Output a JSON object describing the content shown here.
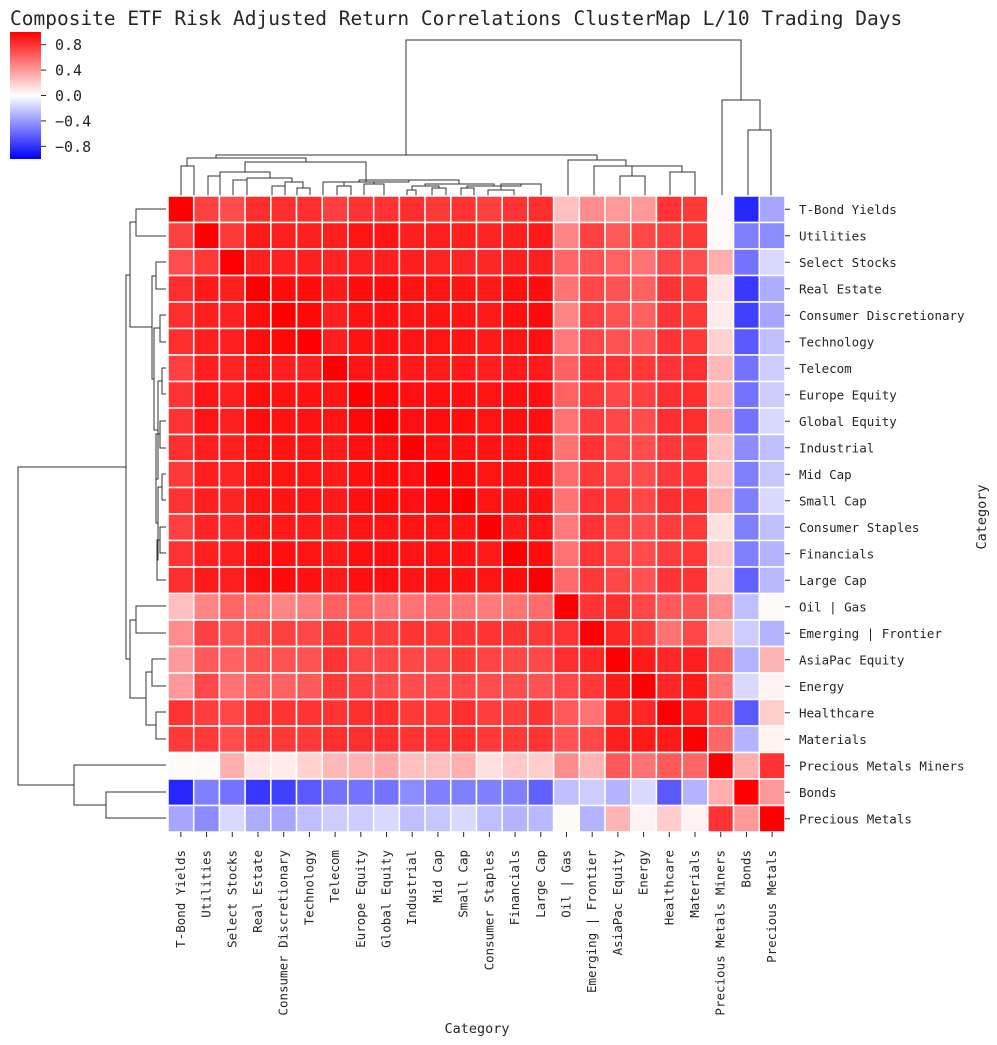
{
  "chart_data": {
    "type": "heatmap",
    "title": "Composite ETF Risk Adjusted Return Correlations ClusterMap L/10 Trading Days",
    "xlabel": "Category",
    "ylabel": "Category",
    "vmin": -1.0,
    "vmax": 1.0,
    "colormap": "bwr",
    "colorbar_ticks": [
      0.8,
      0.4,
      0.0,
      -0.4,
      -0.8
    ],
    "colorbar_tick_labels": [
      "0.8",
      "0.4",
      "0.0",
      "−0.4",
      "−0.8"
    ],
    "categories": [
      "T-Bond Yields",
      "Utilities",
      "Select Stocks",
      "Real Estate",
      "Consumer Discretionary",
      "Technology",
      "Telecom",
      "Europe Equity",
      "Global Equity",
      "Industrial",
      "Mid Cap",
      "Small Cap",
      "Consumer Staples",
      "Financials",
      "Large Cap",
      "Oil | Gas",
      "Emerging | Frontier",
      "AsiaPac Equity",
      "Energy",
      "Healthcare",
      "Materials",
      "Precious Metals Miners",
      "Bonds",
      "Precious Metals"
    ],
    "matrix": [
      [
        1.0,
        0.75,
        0.7,
        0.82,
        0.82,
        0.82,
        0.75,
        0.8,
        0.8,
        0.82,
        0.78,
        0.8,
        0.75,
        0.8,
        0.82,
        0.25,
        0.45,
        0.4,
        0.4,
        0.8,
        0.78,
        0.02,
        -0.85,
        -0.35
      ],
      [
        0.75,
        1.0,
        0.78,
        0.9,
        0.88,
        0.88,
        0.88,
        0.92,
        0.92,
        0.88,
        0.88,
        0.88,
        0.86,
        0.88,
        0.9,
        0.48,
        0.75,
        0.65,
        0.72,
        0.76,
        0.78,
        0.02,
        -0.5,
        -0.45
      ],
      [
        0.7,
        0.78,
        1.0,
        0.88,
        0.87,
        0.88,
        0.86,
        0.88,
        0.88,
        0.88,
        0.86,
        0.86,
        0.85,
        0.88,
        0.88,
        0.6,
        0.68,
        0.62,
        0.55,
        0.72,
        0.7,
        0.32,
        -0.55,
        -0.15
      ],
      [
        0.82,
        0.9,
        0.88,
        1.0,
        0.95,
        0.95,
        0.9,
        0.95,
        0.95,
        0.92,
        0.92,
        0.92,
        0.9,
        0.94,
        0.95,
        0.55,
        0.72,
        0.68,
        0.62,
        0.8,
        0.78,
        0.1,
        -0.78,
        -0.32
      ],
      [
        0.82,
        0.88,
        0.87,
        0.95,
        1.0,
        0.97,
        0.88,
        0.93,
        0.93,
        0.92,
        0.92,
        0.92,
        0.9,
        0.94,
        0.96,
        0.48,
        0.75,
        0.68,
        0.62,
        0.8,
        0.78,
        0.08,
        -0.75,
        -0.35
      ],
      [
        0.82,
        0.88,
        0.88,
        0.95,
        0.97,
        1.0,
        0.88,
        0.93,
        0.93,
        0.92,
        0.92,
        0.92,
        0.9,
        0.92,
        0.94,
        0.52,
        0.72,
        0.68,
        0.65,
        0.8,
        0.78,
        0.18,
        -0.65,
        -0.25
      ],
      [
        0.75,
        0.88,
        0.86,
        0.9,
        0.88,
        0.88,
        1.0,
        0.92,
        0.92,
        0.9,
        0.9,
        0.9,
        0.88,
        0.9,
        0.9,
        0.62,
        0.8,
        0.8,
        0.78,
        0.8,
        0.82,
        0.28,
        -0.55,
        -0.2
      ],
      [
        0.8,
        0.92,
        0.88,
        0.95,
        0.93,
        0.93,
        0.92,
        1.0,
        0.97,
        0.94,
        0.94,
        0.94,
        0.92,
        0.94,
        0.94,
        0.62,
        0.78,
        0.72,
        0.75,
        0.82,
        0.82,
        0.3,
        -0.55,
        -0.2
      ],
      [
        0.8,
        0.92,
        0.88,
        0.95,
        0.93,
        0.93,
        0.92,
        0.97,
        1.0,
        0.94,
        0.95,
        0.95,
        0.92,
        0.94,
        0.94,
        0.55,
        0.76,
        0.72,
        0.7,
        0.82,
        0.82,
        0.35,
        -0.55,
        -0.15
      ],
      [
        0.82,
        0.88,
        0.88,
        0.92,
        0.92,
        0.92,
        0.9,
        0.94,
        0.94,
        1.0,
        0.94,
        0.94,
        0.92,
        0.92,
        0.92,
        0.55,
        0.8,
        0.72,
        0.7,
        0.78,
        0.8,
        0.25,
        -0.45,
        -0.25
      ],
      [
        0.78,
        0.88,
        0.86,
        0.92,
        0.92,
        0.92,
        0.9,
        0.94,
        0.95,
        0.94,
        1.0,
        0.96,
        0.92,
        0.93,
        0.93,
        0.58,
        0.78,
        0.72,
        0.7,
        0.78,
        0.8,
        0.25,
        -0.5,
        -0.22
      ],
      [
        0.8,
        0.88,
        0.86,
        0.92,
        0.92,
        0.92,
        0.9,
        0.94,
        0.95,
        0.94,
        0.96,
        1.0,
        0.92,
        0.93,
        0.93,
        0.55,
        0.8,
        0.78,
        0.72,
        0.82,
        0.82,
        0.32,
        -0.5,
        -0.15
      ],
      [
        0.75,
        0.86,
        0.85,
        0.9,
        0.9,
        0.9,
        0.88,
        0.92,
        0.92,
        0.92,
        0.92,
        0.92,
        1.0,
        0.9,
        0.92,
        0.52,
        0.8,
        0.74,
        0.7,
        0.76,
        0.78,
        0.12,
        -0.5,
        -0.25
      ],
      [
        0.8,
        0.88,
        0.88,
        0.94,
        0.94,
        0.92,
        0.9,
        0.94,
        0.94,
        0.92,
        0.93,
        0.93,
        0.9,
        1.0,
        0.95,
        0.55,
        0.8,
        0.72,
        0.7,
        0.76,
        0.78,
        0.22,
        -0.5,
        -0.3
      ],
      [
        0.82,
        0.9,
        0.88,
        0.95,
        0.96,
        0.94,
        0.9,
        0.94,
        0.94,
        0.92,
        0.93,
        0.93,
        0.92,
        0.95,
        1.0,
        0.58,
        0.78,
        0.72,
        0.68,
        0.8,
        0.8,
        0.2,
        -0.62,
        -0.28
      ],
      [
        0.25,
        0.48,
        0.6,
        0.55,
        0.48,
        0.52,
        0.62,
        0.62,
        0.55,
        0.55,
        0.58,
        0.55,
        0.52,
        0.55,
        0.58,
        1.0,
        0.8,
        0.82,
        0.72,
        0.65,
        0.68,
        0.45,
        -0.25,
        0.02
      ],
      [
        0.45,
        0.75,
        0.68,
        0.72,
        0.75,
        0.72,
        0.8,
        0.78,
        0.76,
        0.8,
        0.78,
        0.8,
        0.8,
        0.8,
        0.78,
        0.8,
        1.0,
        0.85,
        0.78,
        0.55,
        0.72,
        0.3,
        -0.2,
        -0.3
      ],
      [
        0.4,
        0.65,
        0.62,
        0.68,
        0.68,
        0.68,
        0.8,
        0.72,
        0.72,
        0.72,
        0.72,
        0.78,
        0.74,
        0.72,
        0.72,
        0.82,
        0.85,
        1.0,
        0.9,
        0.85,
        0.88,
        0.65,
        -0.3,
        0.3
      ],
      [
        0.4,
        0.72,
        0.55,
        0.62,
        0.62,
        0.65,
        0.78,
        0.75,
        0.7,
        0.7,
        0.7,
        0.72,
        0.7,
        0.7,
        0.68,
        0.72,
        0.78,
        0.9,
        1.0,
        0.85,
        0.9,
        0.55,
        -0.15,
        0.05
      ],
      [
        0.8,
        0.76,
        0.72,
        0.8,
        0.8,
        0.8,
        0.8,
        0.82,
        0.82,
        0.78,
        0.78,
        0.82,
        0.76,
        0.76,
        0.8,
        0.65,
        0.55,
        0.85,
        0.85,
        1.0,
        0.9,
        0.65,
        -0.65,
        0.2
      ],
      [
        0.78,
        0.78,
        0.7,
        0.78,
        0.78,
        0.78,
        0.82,
        0.82,
        0.82,
        0.8,
        0.8,
        0.82,
        0.78,
        0.78,
        0.8,
        0.68,
        0.72,
        0.88,
        0.9,
        0.9,
        1.0,
        0.6,
        -0.3,
        0.05
      ],
      [
        0.02,
        0.02,
        0.32,
        0.1,
        0.08,
        0.18,
        0.28,
        0.3,
        0.35,
        0.25,
        0.25,
        0.32,
        0.12,
        0.22,
        0.2,
        0.45,
        0.3,
        0.65,
        0.55,
        0.65,
        0.6,
        1.0,
        0.32,
        0.8
      ],
      [
        -0.85,
        -0.5,
        -0.55,
        -0.78,
        -0.75,
        -0.65,
        -0.55,
        -0.55,
        -0.55,
        -0.45,
        -0.5,
        -0.5,
        -0.5,
        -0.5,
        -0.62,
        -0.25,
        -0.2,
        -0.3,
        -0.15,
        -0.65,
        -0.3,
        0.32,
        1.0,
        0.4
      ],
      [
        -0.35,
        -0.45,
        -0.15,
        -0.32,
        -0.35,
        -0.25,
        -0.2,
        -0.2,
        -0.15,
        -0.25,
        -0.22,
        -0.15,
        -0.25,
        -0.3,
        -0.28,
        0.02,
        -0.3,
        0.3,
        0.05,
        0.2,
        0.05,
        0.8,
        0.4,
        1.0
      ]
    ]
  }
}
